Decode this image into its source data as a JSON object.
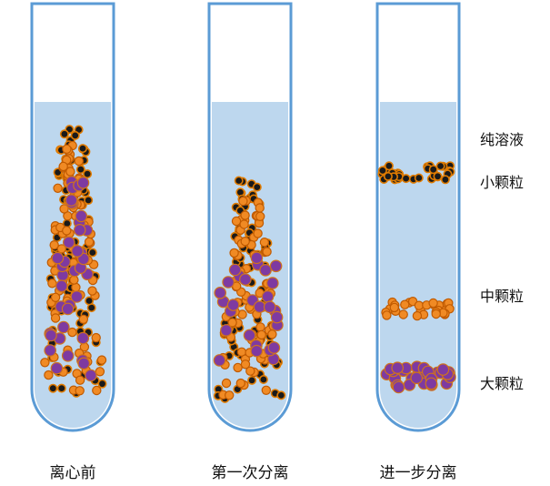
{
  "tubes": [
    {
      "caption": "离心前"
    },
    {
      "caption": "第一次分离"
    },
    {
      "caption": "进一步分离"
    }
  ],
  "layer_labels": {
    "solution": "纯溶液",
    "small": "小颗粒",
    "medium": "中颗粒",
    "large": "大颗粒"
  },
  "colors": {
    "tube_outline": "#5b9bd5",
    "liquid": "#bdd7ee",
    "small_particle": "#1a1a1a",
    "small_particle_ring": "#e07b00",
    "medium_particle": "#f08a24",
    "medium_particle_ring": "#c05a00",
    "large_particle": "#7e3aa1",
    "large_particle_ring": "#d0731c"
  }
}
